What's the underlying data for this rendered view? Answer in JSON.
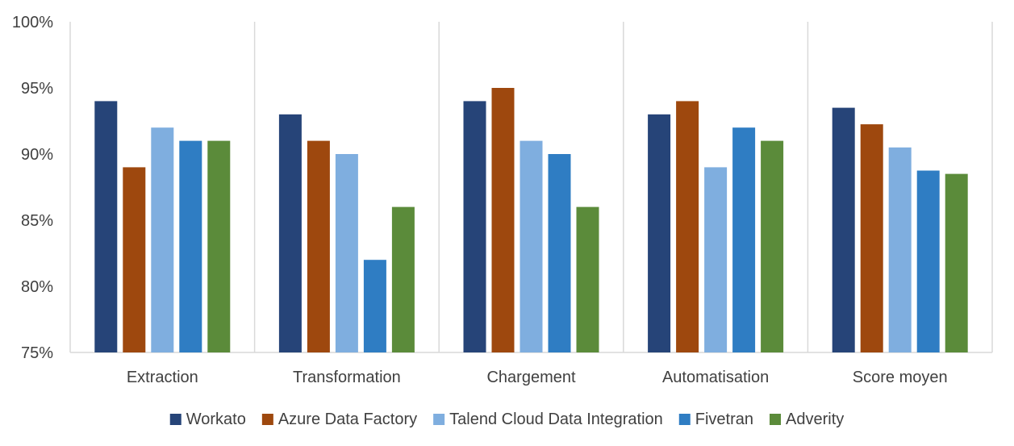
{
  "chart_data": {
    "type": "bar",
    "title": "",
    "xlabel": "",
    "ylabel": "",
    "categories": [
      "Extraction",
      "Transformation",
      "Chargement",
      "Automatisation",
      "Score moyen"
    ],
    "series": [
      {
        "name": "Workato",
        "color": "#264478",
        "values": [
          94,
          93,
          94,
          93,
          93.5
        ]
      },
      {
        "name": "Azure Data Factory",
        "color": "#9E480E",
        "values": [
          89,
          91,
          95,
          94,
          92.25
        ]
      },
      {
        "name": "Talend Cloud Data Integration",
        "color": "#7FAEDF",
        "values": [
          92,
          90,
          91,
          89,
          90.5
        ]
      },
      {
        "name": "Fivetran",
        "color": "#2F7DC3",
        "values": [
          91,
          82,
          90,
          92,
          88.75
        ]
      },
      {
        "name": "Adverity",
        "color": "#5B8B3A",
        "values": [
          91,
          86,
          86,
          91,
          88.5
        ]
      }
    ],
    "ylim": [
      75,
      100
    ],
    "yticks": [
      75,
      80,
      85,
      90,
      95,
      100
    ],
    "ytick_labels": [
      "75%",
      "80%",
      "85%",
      "90%",
      "95%",
      "100%"
    ],
    "grid": false,
    "legend_position": "bottom"
  }
}
